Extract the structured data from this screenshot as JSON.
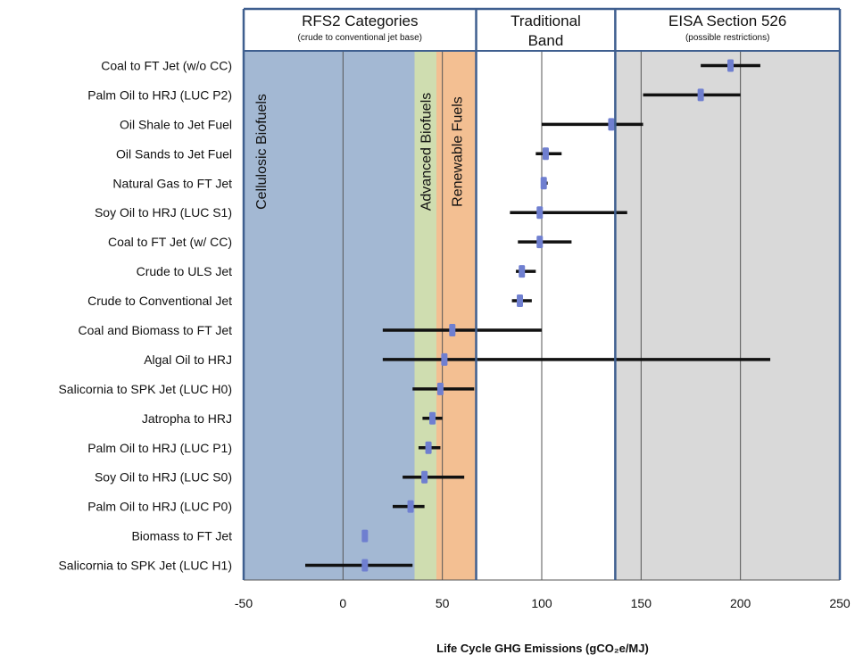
{
  "chart_data": {
    "type": "scatter",
    "xlabel": "Life Cycle  GHG Emissions  (gCO₂e/MJ)",
    "xlim": [
      -50,
      250
    ],
    "x_ticks": [
      -50,
      0,
      50,
      100,
      150,
      200,
      250
    ],
    "grid": "vertical",
    "marker_color": "#6f7fd0",
    "bands": [
      {
        "name": "Cellulosic Biofuels",
        "from": -50,
        "to": 36,
        "color": "#a3b8d3"
      },
      {
        "name": "Advanced Biofuels",
        "from": 36,
        "to": 47,
        "color": "#cfddb0"
      },
      {
        "name": "Renewable Fuels",
        "from": 47,
        "to": 67,
        "color": "#f3bf92"
      },
      {
        "name": "",
        "from": 67,
        "to": 137,
        "color": "#ffffff"
      },
      {
        "name": "",
        "from": 137,
        "to": 250,
        "color": "#d9d9d9"
      }
    ],
    "headers": [
      {
        "title": "RFS2 Categories",
        "subtitle": "(crude to conventional jet base)",
        "from": -50,
        "to": 67
      },
      {
        "title": "Traditional",
        "title2": "Band",
        "subtitle": "",
        "from": 67,
        "to": 137
      },
      {
        "title": "EISA Section 526",
        "subtitle": "(possible restrictions)",
        "from": 137,
        "to": 250
      }
    ],
    "rows": [
      {
        "label": "Coal to FT Jet (w/o CC)",
        "value": 195,
        "low": 180,
        "high": 210
      },
      {
        "label": "Palm Oil to HRJ (LUC P2)",
        "value": 180,
        "low": 151,
        "high": 200
      },
      {
        "label": "Oil Shale to Jet Fuel",
        "value": 135,
        "low": 100,
        "high": 151
      },
      {
        "label": "Oil Sands to Jet Fuel",
        "value": 102,
        "low": 97,
        "high": 110
      },
      {
        "label": "Natural Gas to FT Jet",
        "value": 101,
        "low": 100,
        "high": 103
      },
      {
        "label": "Soy Oil to HRJ (LUC S1)",
        "value": 99,
        "low": 84,
        "high": 143
      },
      {
        "label": "Coal to FT Jet (w/ CC)",
        "value": 99,
        "low": 88,
        "high": 115
      },
      {
        "label": "Crude to ULS Jet",
        "value": 90,
        "low": 87,
        "high": 97
      },
      {
        "label": "Crude to Conventional Jet",
        "value": 89,
        "low": 85,
        "high": 95
      },
      {
        "label": "Coal and Biomass  to FT Jet",
        "value": 55,
        "low": 20,
        "high": 100
      },
      {
        "label": "Algal Oil to HRJ",
        "value": 51,
        "low": 20,
        "high": 215
      },
      {
        "label": "Salicornia to SPK Jet (LUC H0)",
        "value": 49,
        "low": 35,
        "high": 66
      },
      {
        "label": "Jatropha to HRJ",
        "value": 45,
        "low": 40,
        "high": 50
      },
      {
        "label": "Palm Oil to HRJ (LUC P1)",
        "value": 43,
        "low": 38,
        "high": 49
      },
      {
        "label": "Soy Oil to HRJ (LUC S0)",
        "value": 41,
        "low": 30,
        "high": 61
      },
      {
        "label": "Palm Oil to HRJ (LUC P0)",
        "value": 34,
        "low": 25,
        "high": 41
      },
      {
        "label": "Biomass to FT Jet",
        "value": 11,
        "low": 10,
        "high": 12
      },
      {
        "label": "Salicornia to SPK Jet (LUC H1)",
        "value": 11,
        "low": -19,
        "high": 35
      }
    ]
  }
}
